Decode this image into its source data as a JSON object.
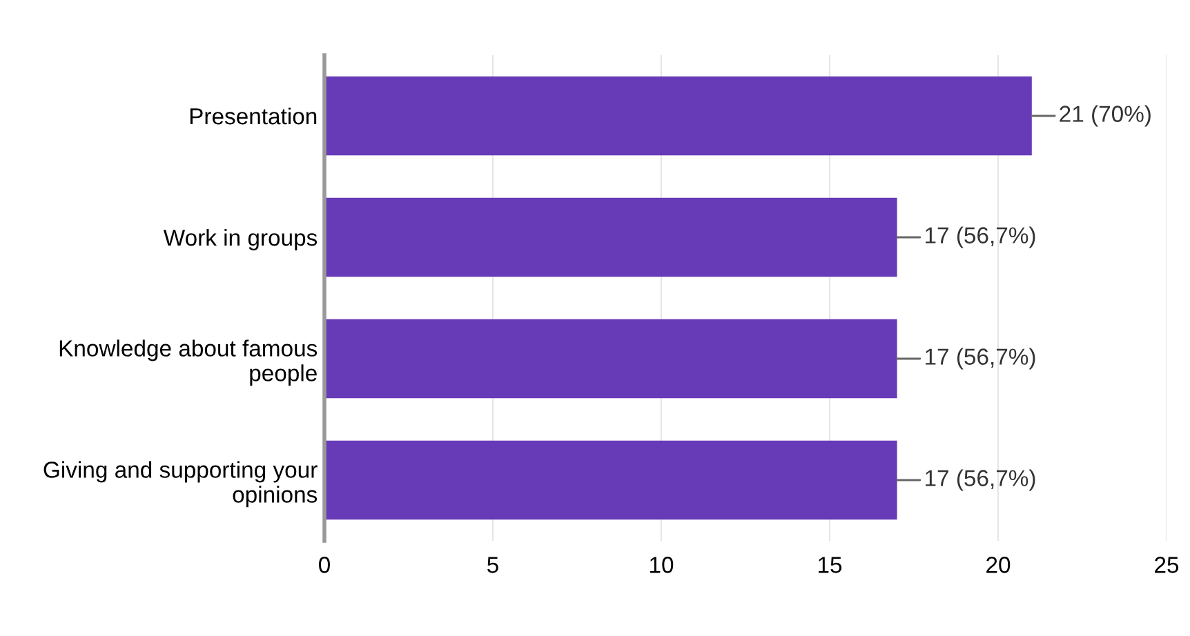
{
  "chart_data": {
    "type": "bar",
    "orientation": "horizontal",
    "categories": [
      "Presentation",
      "Work in groups",
      "Knowledge about famous\npeople",
      "Giving and supporting your\nopinions"
    ],
    "values": [
      21,
      17,
      17,
      17
    ],
    "color": "#673ab7",
    "value_labels": [
      "21 (70%)",
      "17 (56,7%)",
      "17 (56,7%)",
      "17 (56,7%)"
    ],
    "xlim": [
      0,
      25
    ],
    "xticks": [
      0,
      5,
      10,
      15,
      20,
      25
    ],
    "grid": "x"
  }
}
